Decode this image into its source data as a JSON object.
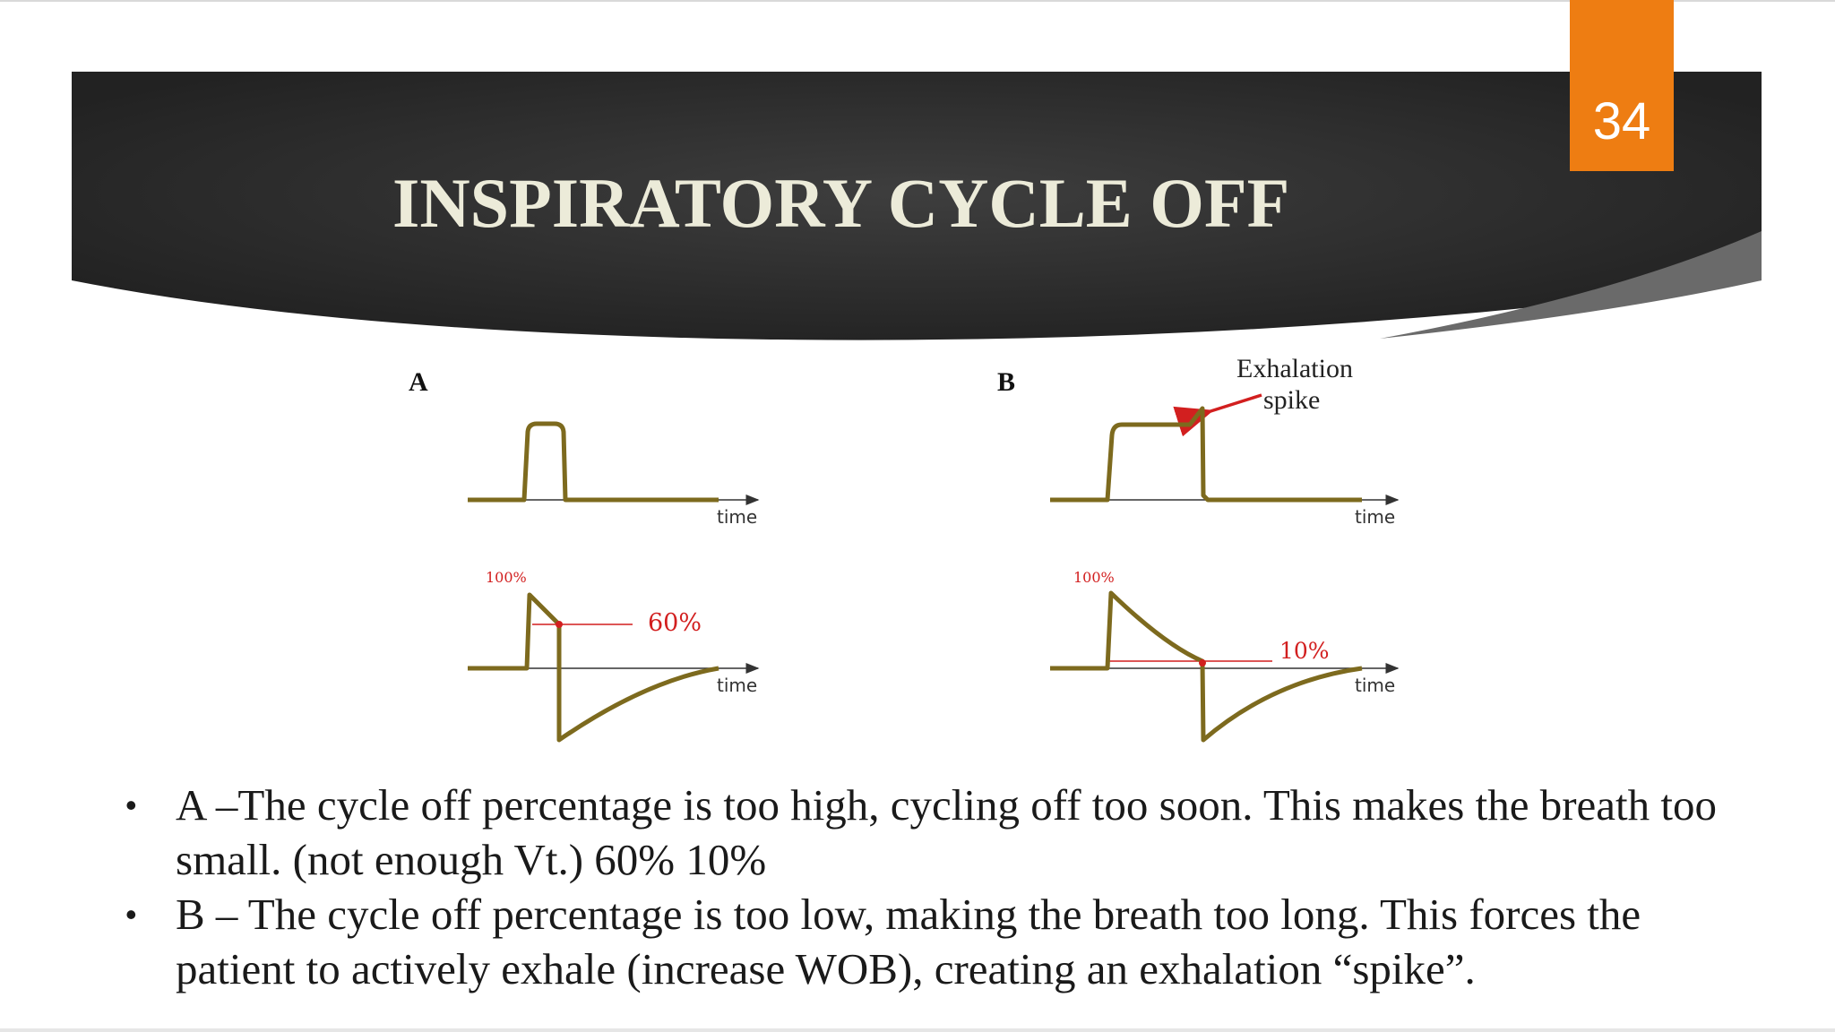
{
  "slide": {
    "number": "34",
    "title": "INSPIRATORY CYCLE OFF",
    "colors": {
      "banner": "#2b2b2b",
      "accent": "#ee7d12",
      "waveform": "#7d6a1e",
      "marker": "#d21f1f"
    }
  },
  "diagram": {
    "panel_a": {
      "label": "A",
      "top_axis_label": "time",
      "bottom_axis_label": "time",
      "peak_label": "100%",
      "threshold_label": "60%"
    },
    "panel_b": {
      "label": "B",
      "top_axis_label": "time",
      "bottom_axis_label": "time",
      "peak_label": "100%",
      "threshold_label": "10%",
      "annotation_line1": "Exhalation",
      "annotation_line2": "spike"
    }
  },
  "bullets": [
    {
      "bullet": "•",
      "text": "A –The cycle off percentage is too high, cycling off too soon. This makes the breath too small. (not enough Vt.) 60% 10%"
    },
    {
      "bullet": "•",
      "text": "B – The cycle off percentage is too low, making the breath too long. This forces the patient to actively exhale (increase WOB), creating an exhalation “spike”."
    }
  ]
}
